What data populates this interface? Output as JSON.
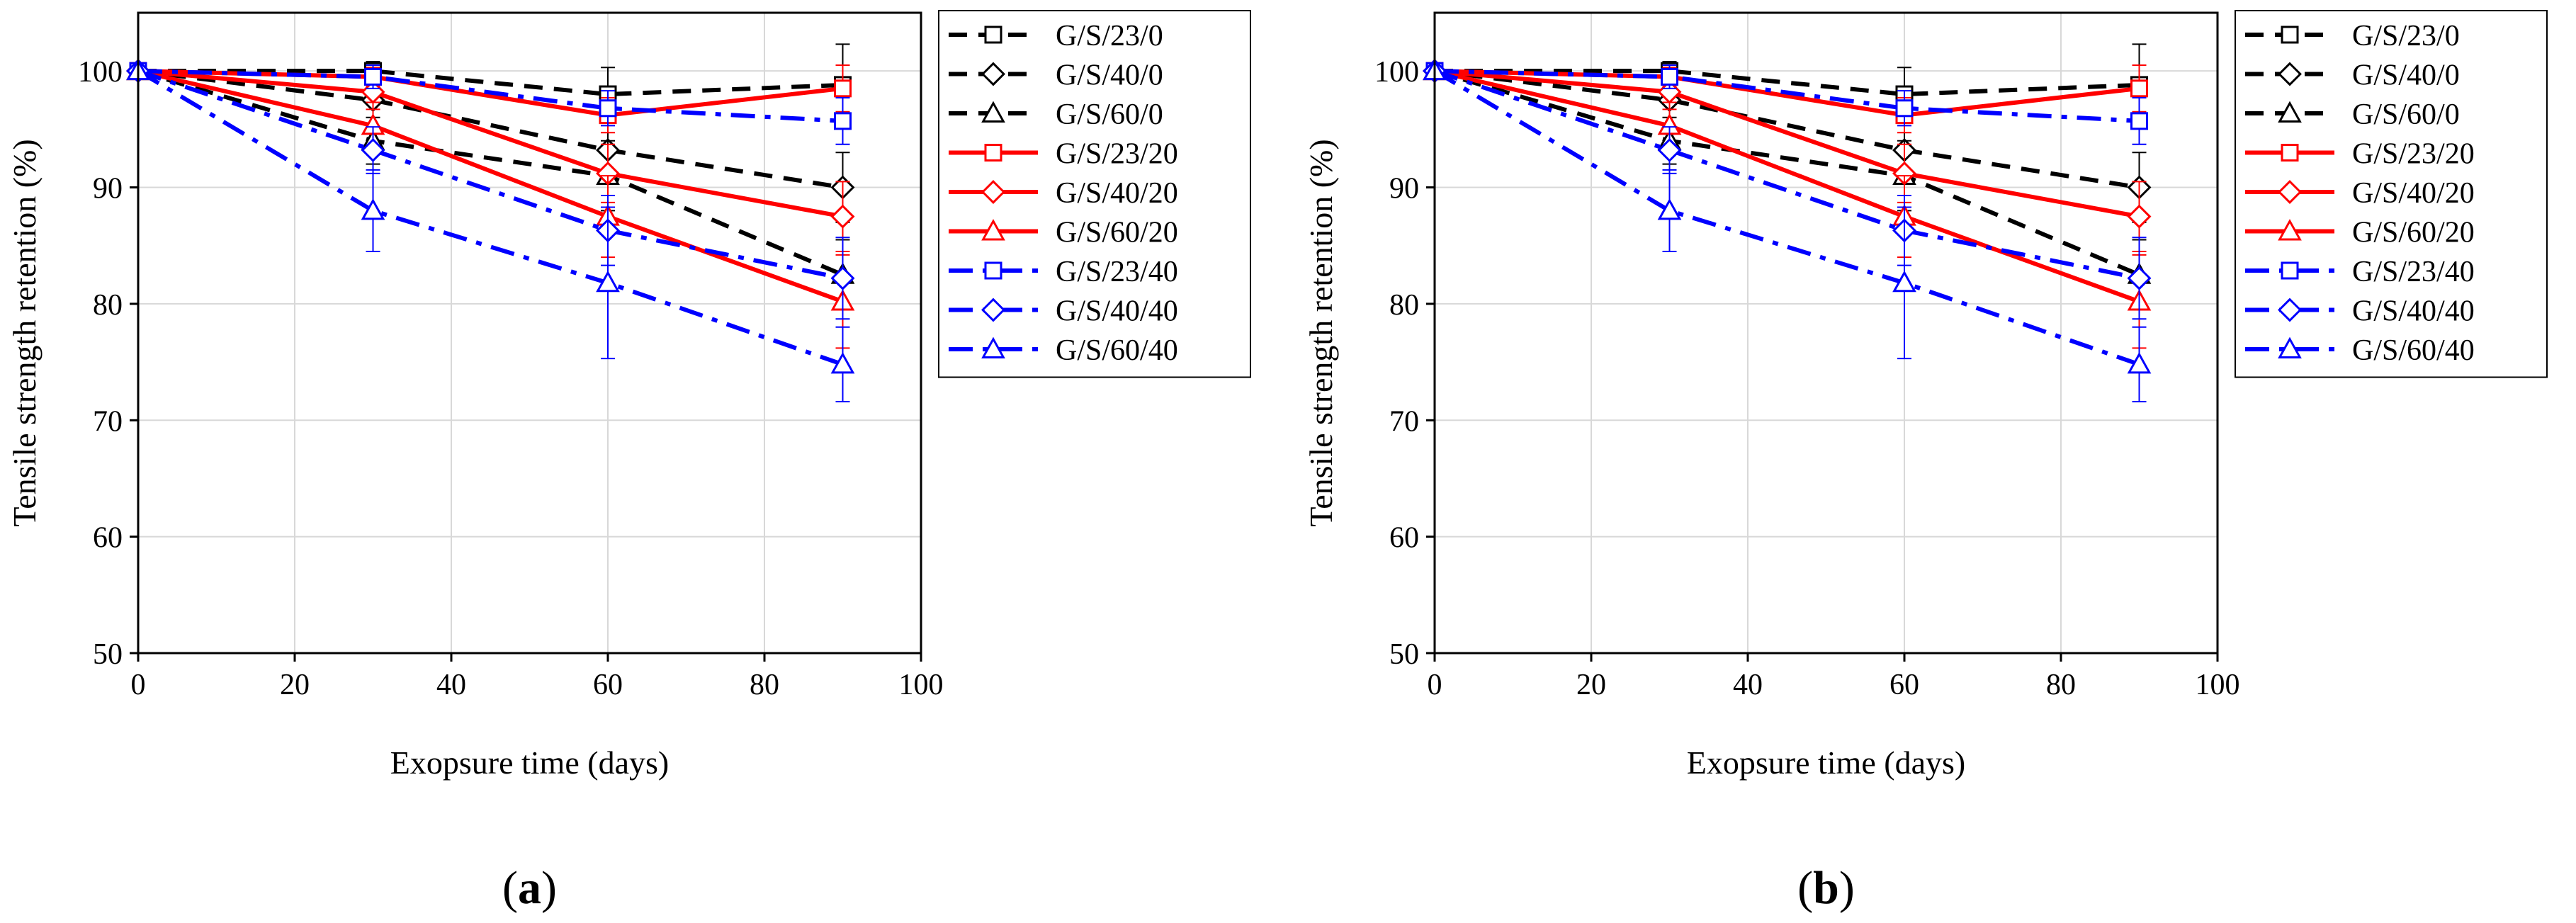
{
  "chart_data": [
    {
      "type": "line",
      "panel_label": "a",
      "xlabel": "Exopsure time (days)",
      "ylabel": "Tensile strength retention (%)",
      "xlim": [
        0,
        100
      ],
      "ylim": [
        50,
        105
      ],
      "xticks": [
        0,
        20,
        40,
        60,
        80,
        100
      ],
      "yticks": [
        50,
        60,
        70,
        80,
        90,
        100
      ],
      "grid": true,
      "legend_position": "outside-right",
      "x": [
        0,
        30,
        60,
        90
      ],
      "series": [
        {
          "name": "G/S/23/0",
          "color": "#000000",
          "dash": "dash",
          "marker": "square",
          "values": [
            100,
            100,
            98,
            98.8
          ],
          "errors": [
            0,
            0.8,
            2.3,
            3.5
          ]
        },
        {
          "name": "G/S/40/0",
          "color": "#000000",
          "dash": "dash",
          "marker": "diamond",
          "values": [
            100,
            97.5,
            93.2,
            90
          ],
          "errors": [
            0,
            1.5,
            2.5,
            3.0
          ]
        },
        {
          "name": "G/S/60/0",
          "color": "#000000",
          "dash": "dash",
          "marker": "triangle",
          "values": [
            100,
            94,
            91,
            82.5
          ],
          "errors": [
            0,
            2.0,
            3.0,
            3.0
          ]
        },
        {
          "name": "G/S/23/20",
          "color": "#ff0000",
          "dash": "solid",
          "marker": "square",
          "values": [
            100,
            99.5,
            96.2,
            98.5
          ],
          "errors": [
            0,
            0.8,
            1.5,
            2.0
          ]
        },
        {
          "name": "G/S/40/20",
          "color": "#ff0000",
          "dash": "solid",
          "marker": "diamond",
          "values": [
            100,
            98.2,
            91.2,
            87.5
          ],
          "errors": [
            0,
            1.5,
            2.5,
            3.0
          ]
        },
        {
          "name": "G/S/60/20",
          "color": "#ff0000",
          "dash": "solid",
          "marker": "triangle",
          "values": [
            100,
            95.3,
            87.5,
            80.2
          ],
          "errors": [
            0,
            2.0,
            3.5,
            4.0
          ]
        },
        {
          "name": "G/S/23/40",
          "color": "#0000ff",
          "dash": "dashdot",
          "marker": "square",
          "values": [
            100,
            99.5,
            96.8,
            95.7
          ],
          "errors": [
            0,
            1.0,
            1.5,
            2.0
          ]
        },
        {
          "name": "G/S/40/40",
          "color": "#0000ff",
          "dash": "dashdot",
          "marker": "diamond",
          "values": [
            100,
            93.2,
            86.3,
            82.2
          ],
          "errors": [
            0,
            2.0,
            3.0,
            3.5
          ]
        },
        {
          "name": "G/S/60/40",
          "color": "#0000ff",
          "dash": "dashdot",
          "marker": "triangle",
          "values": [
            100,
            88,
            81.8,
            74.8
          ],
          "errors": [
            0,
            3.5,
            6.5,
            3.2
          ]
        }
      ]
    },
    {
      "type": "line",
      "panel_label": "b",
      "xlabel": "Exopsure time (days)",
      "ylabel": "Tensile strength retention (%)",
      "xlim": [
        0,
        100
      ],
      "ylim": [
        50,
        105
      ],
      "xticks": [
        0,
        20,
        40,
        60,
        80,
        100
      ],
      "yticks": [
        50,
        60,
        70,
        80,
        90,
        100
      ],
      "grid": true,
      "legend_position": "outside-right",
      "x": [
        0,
        30,
        60,
        90
      ],
      "series": [
        {
          "name": "G/S/23/0",
          "color": "#000000",
          "dash": "dash",
          "marker": "square",
          "values": [
            100,
            100,
            98,
            98.8
          ],
          "errors": [
            0,
            0.8,
            2.3,
            3.5
          ]
        },
        {
          "name": "G/S/40/0",
          "color": "#000000",
          "dash": "dash",
          "marker": "diamond",
          "values": [
            100,
            97.5,
            93.2,
            90
          ],
          "errors": [
            0,
            1.5,
            2.5,
            3.0
          ]
        },
        {
          "name": "G/S/60/0",
          "color": "#000000",
          "dash": "dash",
          "marker": "triangle",
          "values": [
            100,
            94,
            91,
            82.5
          ],
          "errors": [
            0,
            2.0,
            3.0,
            3.0
          ]
        },
        {
          "name": "G/S/23/20",
          "color": "#ff0000",
          "dash": "solid",
          "marker": "square",
          "values": [
            100,
            99.5,
            96.2,
            98.5
          ],
          "errors": [
            0,
            0.8,
            1.5,
            2.0
          ]
        },
        {
          "name": "G/S/40/20",
          "color": "#ff0000",
          "dash": "solid",
          "marker": "diamond",
          "values": [
            100,
            98.2,
            91.2,
            87.5
          ],
          "errors": [
            0,
            1.5,
            2.5,
            3.0
          ]
        },
        {
          "name": "G/S/60/20",
          "color": "#ff0000",
          "dash": "solid",
          "marker": "triangle",
          "values": [
            100,
            95.3,
            87.5,
            80.2
          ],
          "errors": [
            0,
            2.0,
            3.5,
            4.0
          ]
        },
        {
          "name": "G/S/23/40",
          "color": "#0000ff",
          "dash": "dashdot",
          "marker": "square",
          "values": [
            100,
            99.5,
            96.8,
            95.7
          ],
          "errors": [
            0,
            1.0,
            1.5,
            2.0
          ]
        },
        {
          "name": "G/S/40/40",
          "color": "#0000ff",
          "dash": "dashdot",
          "marker": "diamond",
          "values": [
            100,
            93.2,
            86.3,
            82.2
          ],
          "errors": [
            0,
            2.0,
            3.0,
            3.5
          ]
        },
        {
          "name": "G/S/60/40",
          "color": "#0000ff",
          "dash": "dashdot",
          "marker": "triangle",
          "values": [
            100,
            88,
            81.8,
            74.8
          ],
          "errors": [
            0,
            3.5,
            6.5,
            3.2
          ]
        }
      ]
    }
  ]
}
